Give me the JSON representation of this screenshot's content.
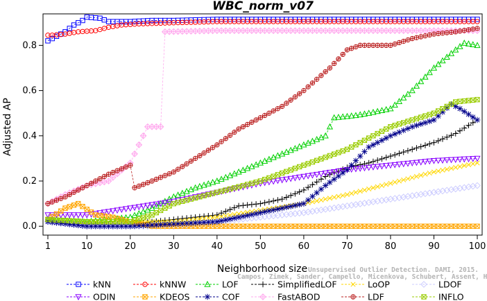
{
  "chart_data": {
    "type": "line",
    "title": "WBC_norm_v07",
    "xlabel": "Neighborhood size",
    "ylabel": "Adjusted AP",
    "xlim": [
      1,
      100
    ],
    "ylim": [
      -0.03,
      0.93
    ],
    "xticks": [
      1,
      10,
      20,
      30,
      40,
      50,
      60,
      70,
      80,
      90,
      100
    ],
    "yticks": [
      0.0,
      0.2,
      0.4,
      0.6,
      0.8
    ],
    "ytick_labels": [
      "0.0",
      "0.2",
      "0.4",
      "0.6",
      "0.8"
    ],
    "grid": false,
    "legend_position": "bottom",
    "credit": [
      "Unsupervised Outlier Detection. DAMI, 2015.",
      "Campos, Zimek, Sander, Campello, Micenkova, Schubert, Assent, Houle"
    ],
    "series": [
      {
        "name": "kNN",
        "color": "#0000ff",
        "marker": "square",
        "dash": "dashed",
        "points": [
          [
            1,
            0.82
          ],
          [
            2,
            0.83
          ],
          [
            3,
            0.84
          ],
          [
            5,
            0.86
          ],
          [
            7,
            0.89
          ],
          [
            9,
            0.91
          ],
          [
            10,
            0.925
          ],
          [
            13,
            0.92
          ],
          [
            15,
            0.905
          ],
          [
            20,
            0.905
          ],
          [
            25,
            0.91
          ],
          [
            30,
            0.91
          ],
          [
            40,
            0.915
          ],
          [
            60,
            0.915
          ],
          [
            80,
            0.915
          ],
          [
            100,
            0.915
          ]
        ]
      },
      {
        "name": "kNNW",
        "color": "#ff0000",
        "marker": "circle",
        "dash": "dashed",
        "points": [
          [
            1,
            0.845
          ],
          [
            2,
            0.845
          ],
          [
            5,
            0.85
          ],
          [
            8,
            0.86
          ],
          [
            12,
            0.865
          ],
          [
            15,
            0.88
          ],
          [
            18,
            0.89
          ],
          [
            22,
            0.895
          ],
          [
            30,
            0.9
          ],
          [
            40,
            0.905
          ],
          [
            60,
            0.905
          ],
          [
            80,
            0.905
          ],
          [
            100,
            0.905
          ]
        ]
      },
      {
        "name": "LOF",
        "color": "#00d000",
        "marker": "triangle-up",
        "dash": "dashed",
        "points": [
          [
            1,
            0.03
          ],
          [
            10,
            0.02
          ],
          [
            20,
            0.04
          ],
          [
            25,
            0.08
          ],
          [
            30,
            0.13
          ],
          [
            35,
            0.17
          ],
          [
            40,
            0.2
          ],
          [
            45,
            0.24
          ],
          [
            50,
            0.28
          ],
          [
            55,
            0.32
          ],
          [
            60,
            0.36
          ],
          [
            65,
            0.4
          ],
          [
            67,
            0.48
          ],
          [
            72,
            0.49
          ],
          [
            75,
            0.5
          ],
          [
            80,
            0.52
          ],
          [
            85,
            0.6
          ],
          [
            90,
            0.7
          ],
          [
            95,
            0.78
          ],
          [
            97,
            0.81
          ],
          [
            100,
            0.8
          ]
        ]
      },
      {
        "name": "SimplifiedLOF",
        "color": "#000000",
        "marker": "plus",
        "dash": "dashed",
        "points": [
          [
            1,
            0.02
          ],
          [
            10,
            0.01
          ],
          [
            20,
            0.01
          ],
          [
            25,
            0.02
          ],
          [
            30,
            0.03
          ],
          [
            35,
            0.04
          ],
          [
            40,
            0.05
          ],
          [
            45,
            0.09
          ],
          [
            50,
            0.1
          ],
          [
            55,
            0.12
          ],
          [
            60,
            0.16
          ],
          [
            65,
            0.22
          ],
          [
            70,
            0.26
          ],
          [
            75,
            0.28
          ],
          [
            80,
            0.31
          ],
          [
            85,
            0.34
          ],
          [
            90,
            0.37
          ],
          [
            95,
            0.41
          ],
          [
            100,
            0.47
          ]
        ]
      },
      {
        "name": "LoOP",
        "color": "#ffd700",
        "marker": "cross",
        "dash": "dashed",
        "points": [
          [
            1,
            0.03
          ],
          [
            10,
            0.02
          ],
          [
            20,
            0.02
          ],
          [
            30,
            0.02
          ],
          [
            40,
            0.04
          ],
          [
            50,
            0.07
          ],
          [
            60,
            0.1
          ],
          [
            70,
            0.14
          ],
          [
            80,
            0.19
          ],
          [
            90,
            0.24
          ],
          [
            100,
            0.28
          ]
        ]
      },
      {
        "name": "LDOF",
        "color": "#ccccff",
        "marker": "diamond",
        "dash": "dashed",
        "points": [
          [
            1,
            0.02
          ],
          [
            10,
            0.0
          ],
          [
            20,
            0.0
          ],
          [
            30,
            0.0
          ],
          [
            40,
            0.02
          ],
          [
            50,
            0.04
          ],
          [
            60,
            0.06
          ],
          [
            70,
            0.09
          ],
          [
            80,
            0.12
          ],
          [
            90,
            0.15
          ],
          [
            100,
            0.18
          ]
        ]
      },
      {
        "name": "ODIN",
        "color": "#8800ff",
        "marker": "triangle-down",
        "dash": "dashed",
        "points": [
          [
            1,
            0.05
          ],
          [
            10,
            0.05
          ],
          [
            20,
            0.08
          ],
          [
            30,
            0.11
          ],
          [
            40,
            0.15
          ],
          [
            50,
            0.19
          ],
          [
            60,
            0.22
          ],
          [
            70,
            0.25
          ],
          [
            80,
            0.27
          ],
          [
            90,
            0.29
          ],
          [
            100,
            0.3
          ]
        ]
      },
      {
        "name": "KDEOS",
        "color": "#ffa500",
        "marker": "square-x",
        "dash": "dashed",
        "points": [
          [
            1,
            0.03
          ],
          [
            5,
            0.08
          ],
          [
            8,
            0.1
          ],
          [
            12,
            0.05
          ],
          [
            16,
            0.04
          ],
          [
            20,
            0.02
          ],
          [
            25,
            0.0
          ],
          [
            30,
            0.0
          ],
          [
            40,
            0.0
          ],
          [
            60,
            0.0
          ],
          [
            80,
            0.0
          ],
          [
            100,
            0.0
          ]
        ]
      },
      {
        "name": "COF",
        "color": "#00008b",
        "marker": "asterisk",
        "dash": "dashed",
        "points": [
          [
            1,
            0.02
          ],
          [
            10,
            0.0
          ],
          [
            20,
            0.0
          ],
          [
            30,
            0.01
          ],
          [
            40,
            0.02
          ],
          [
            50,
            0.06
          ],
          [
            60,
            0.1
          ],
          [
            65,
            0.18
          ],
          [
            70,
            0.25
          ],
          [
            75,
            0.35
          ],
          [
            80,
            0.4
          ],
          [
            85,
            0.44
          ],
          [
            90,
            0.47
          ],
          [
            94,
            0.54
          ],
          [
            96,
            0.52
          ],
          [
            100,
            0.47
          ]
        ]
      },
      {
        "name": "FastABOD",
        "color": "#ffaaee",
        "marker": "diamond-x",
        "dash": "dashed",
        "points": [
          [
            1,
            0.1
          ],
          [
            5,
            0.14
          ],
          [
            10,
            0.18
          ],
          [
            15,
            0.2
          ],
          [
            20,
            0.28
          ],
          [
            22,
            0.36
          ],
          [
            24,
            0.44
          ],
          [
            26,
            0.44
          ],
          [
            27,
            0.44
          ],
          [
            28,
            0.86
          ],
          [
            40,
            0.865
          ],
          [
            60,
            0.865
          ],
          [
            80,
            0.865
          ],
          [
            100,
            0.865
          ]
        ]
      },
      {
        "name": "LDF",
        "color": "#bb2222",
        "marker": "circle-plus",
        "dash": "dashed",
        "points": [
          [
            1,
            0.1
          ],
          [
            5,
            0.13
          ],
          [
            10,
            0.18
          ],
          [
            15,
            0.23
          ],
          [
            20,
            0.27
          ],
          [
            21,
            0.17
          ],
          [
            25,
            0.2
          ],
          [
            30,
            0.24
          ],
          [
            35,
            0.3
          ],
          [
            40,
            0.36
          ],
          [
            45,
            0.43
          ],
          [
            50,
            0.48
          ],
          [
            55,
            0.53
          ],
          [
            60,
            0.6
          ],
          [
            63,
            0.65
          ],
          [
            66,
            0.7
          ],
          [
            70,
            0.78
          ],
          [
            73,
            0.8
          ],
          [
            75,
            0.8
          ],
          [
            80,
            0.8
          ],
          [
            85,
            0.83
          ],
          [
            90,
            0.85
          ],
          [
            95,
            0.86
          ],
          [
            100,
            0.875
          ]
        ]
      },
      {
        "name": "INFLO",
        "color": "#99cc00",
        "marker": "hourglass",
        "dash": "dashed",
        "points": [
          [
            1,
            0.03
          ],
          [
            10,
            0.02
          ],
          [
            20,
            0.02
          ],
          [
            25,
            0.05
          ],
          [
            30,
            0.1
          ],
          [
            40,
            0.15
          ],
          [
            50,
            0.2
          ],
          [
            60,
            0.27
          ],
          [
            70,
            0.34
          ],
          [
            75,
            0.39
          ],
          [
            80,
            0.44
          ],
          [
            90,
            0.5
          ],
          [
            95,
            0.55
          ],
          [
            100,
            0.56
          ]
        ]
      }
    ]
  }
}
